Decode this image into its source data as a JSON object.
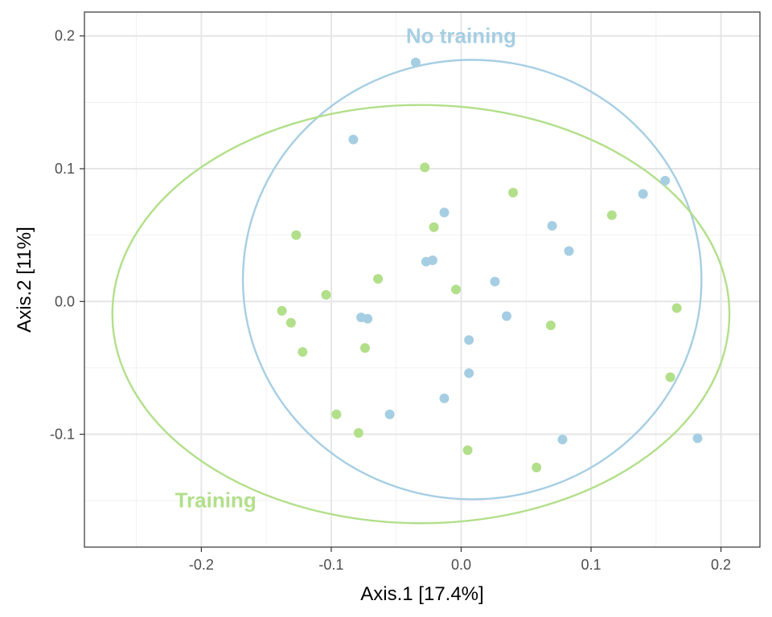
{
  "chart_data": {
    "type": "scatter",
    "xlabel": "Axis.1   [17.4%]",
    "ylabel": "Axis.2   [11%]",
    "xlim": [
      -0.29,
      0.23
    ],
    "ylim": [
      -0.185,
      0.218
    ],
    "x_ticks": [
      -0.2,
      -0.1,
      0.0,
      0.1,
      0.2
    ],
    "x_tick_labels": [
      "-0.2",
      "-0.1",
      "0.0",
      "0.1",
      "0.2"
    ],
    "y_ticks": [
      -0.1,
      0.0,
      0.1,
      0.2
    ],
    "y_tick_labels": [
      "-0.1",
      "0.0",
      "0.1",
      "0.2"
    ],
    "grid": true,
    "legend": "none",
    "series": [
      {
        "name": "No training",
        "color": "#a6cee3",
        "points": [
          {
            "x": -0.035,
            "y": 0.18
          },
          {
            "x": -0.083,
            "y": 0.122
          },
          {
            "x": -0.013,
            "y": 0.067
          },
          {
            "x": -0.027,
            "y": 0.03
          },
          {
            "x": -0.022,
            "y": 0.031
          },
          {
            "x": 0.026,
            "y": 0.015
          },
          {
            "x": 0.07,
            "y": 0.057
          },
          {
            "x": 0.083,
            "y": 0.038
          },
          {
            "x": 0.14,
            "y": 0.081
          },
          {
            "x": 0.157,
            "y": 0.091
          },
          {
            "x": -0.077,
            "y": -0.012
          },
          {
            "x": -0.072,
            "y": -0.013
          },
          {
            "x": 0.035,
            "y": -0.011
          },
          {
            "x": 0.006,
            "y": -0.029
          },
          {
            "x": 0.006,
            "y": -0.054
          },
          {
            "x": -0.013,
            "y": -0.073
          },
          {
            "x": -0.055,
            "y": -0.085
          },
          {
            "x": 0.078,
            "y": -0.104
          },
          {
            "x": 0.182,
            "y": -0.103
          }
        ],
        "ellipse": {
          "cx": 0.0085,
          "cy": 0.0165,
          "rx": 0.1765,
          "ry": 0.1655
        }
      },
      {
        "name": "Training",
        "color": "#b2df8a",
        "points": [
          {
            "x": -0.028,
            "y": 0.101
          },
          {
            "x": 0.04,
            "y": 0.082
          },
          {
            "x": -0.021,
            "y": 0.056
          },
          {
            "x": 0.116,
            "y": 0.065
          },
          {
            "x": -0.127,
            "y": 0.05
          },
          {
            "x": -0.064,
            "y": 0.017
          },
          {
            "x": -0.004,
            "y": 0.009
          },
          {
            "x": -0.104,
            "y": 0.005
          },
          {
            "x": -0.138,
            "y": -0.007
          },
          {
            "x": -0.131,
            "y": -0.016
          },
          {
            "x": 0.069,
            "y": -0.018
          },
          {
            "x": 0.166,
            "y": -0.005
          },
          {
            "x": -0.122,
            "y": -0.038
          },
          {
            "x": -0.074,
            "y": -0.035
          },
          {
            "x": 0.161,
            "y": -0.057
          },
          {
            "x": -0.096,
            "y": -0.085
          },
          {
            "x": -0.079,
            "y": -0.099
          },
          {
            "x": 0.005,
            "y": -0.112
          },
          {
            "x": 0.058,
            "y": -0.125
          }
        ],
        "ellipse": {
          "cx": -0.031,
          "cy": -0.0095,
          "rx": 0.2375,
          "ry": 0.1575
        }
      }
    ],
    "annotations": [
      {
        "text": "No training",
        "x": 0.0,
        "y": 0.199,
        "color": "#a6cee3"
      },
      {
        "text": "Training",
        "x": -0.189,
        "y": -0.151,
        "color": "#b2df8a"
      }
    ]
  }
}
